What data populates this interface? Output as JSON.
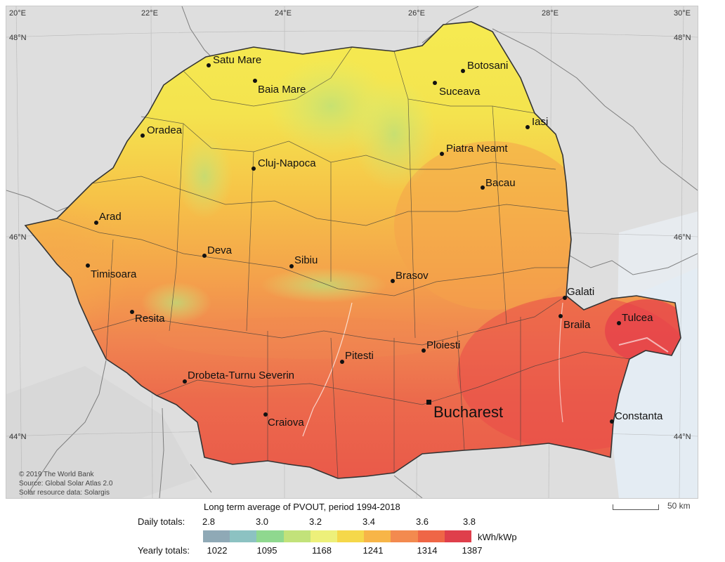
{
  "map": {
    "longitude_labels": [
      "20°E",
      "22°E",
      "24°E",
      "26°E",
      "28°E",
      "30°E"
    ],
    "latitude_labels": [
      "48°N",
      "46°N",
      "44°N"
    ],
    "cities": [
      {
        "name": "Satu Mare"
      },
      {
        "name": "Baia Mare"
      },
      {
        "name": "Botosani"
      },
      {
        "name": "Suceava"
      },
      {
        "name": "Iasi"
      },
      {
        "name": "Oradea"
      },
      {
        "name": "Piatra Neamt"
      },
      {
        "name": "Cluj-Napoca"
      },
      {
        "name": "Bacau"
      },
      {
        "name": "Arad"
      },
      {
        "name": "Deva"
      },
      {
        "name": "Sibiu"
      },
      {
        "name": "Timisoara"
      },
      {
        "name": "Brasov"
      },
      {
        "name": "Galati"
      },
      {
        "name": "Resita"
      },
      {
        "name": "Braila"
      },
      {
        "name": "Tulcea"
      },
      {
        "name": "Pitesti"
      },
      {
        "name": "Ploiesti"
      },
      {
        "name": "Drobeta-Turnu Severin"
      },
      {
        "name": "Bucharest",
        "capital": true
      },
      {
        "name": "Craiova"
      },
      {
        "name": "Constanta"
      }
    ],
    "credits": [
      "© 2019 The World Bank",
      "Source: Global Solar Atlas 2.0",
      "Solar resource data: Solargis"
    ],
    "scale_label": "50 km"
  },
  "legend": {
    "title": "Long term average of PVOUT, period 1994-2018",
    "daily_label": "Daily totals:",
    "yearly_label": "Yearly totals:",
    "daily_ticks": [
      "2.8",
      "3.0",
      "3.2",
      "3.4",
      "3.6",
      "3.8"
    ],
    "yearly_ticks": [
      "1022",
      "1095",
      "1168",
      "1241",
      "1314",
      "1387"
    ],
    "unit": "kWh/kWp",
    "colors": [
      "#8fa9b6",
      "#8cc2c2",
      "#8fd88f",
      "#c2e27a",
      "#edf07a",
      "#f5d84a",
      "#f7b548",
      "#f38a4f",
      "#ef6646",
      "#df3f4b"
    ]
  }
}
